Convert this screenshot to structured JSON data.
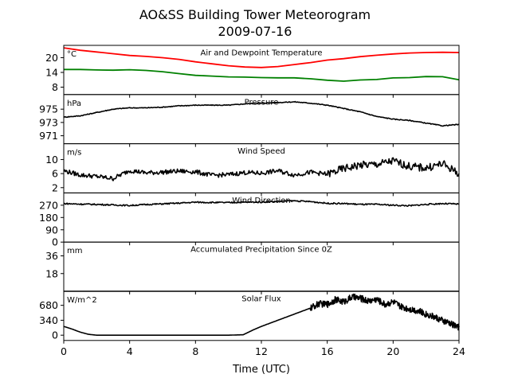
{
  "title": "AO&SS Building Tower Meteorogram",
  "subtitle": "2009-07-16",
  "chart_data": [
    {
      "type": "line",
      "annotation": "Air and Dewpoint Temperature",
      "unit": "°C",
      "ylim": [
        5,
        25
      ],
      "yticks": [
        8,
        14,
        20
      ],
      "series": [
        {
          "color": "#ff0000",
          "x": [
            0,
            1,
            2,
            3,
            4,
            5,
            6,
            7,
            8,
            9,
            10,
            11,
            12,
            13,
            14,
            15,
            16,
            17,
            18,
            19,
            20,
            21,
            22,
            23,
            24
          ],
          "y": [
            24.0,
            23.0,
            22.3,
            21.6,
            20.9,
            20.5,
            20.0,
            19.3,
            18.3,
            17.5,
            16.7,
            16.2,
            16.0,
            16.4,
            17.2,
            18.0,
            19.0,
            19.6,
            20.4,
            21.0,
            21.5,
            21.9,
            22.1,
            22.2,
            22.1
          ]
        },
        {
          "color": "#008000",
          "x": [
            0,
            1,
            2,
            3,
            4,
            5,
            6,
            7,
            8,
            9,
            10,
            11,
            12,
            13,
            14,
            15,
            16,
            17,
            18,
            19,
            20,
            21,
            22,
            23,
            24
          ],
          "y": [
            15.2,
            15.2,
            15.0,
            14.9,
            15.1,
            14.8,
            14.3,
            13.5,
            12.8,
            12.5,
            12.2,
            12.1,
            11.9,
            11.8,
            11.8,
            11.4,
            11.0,
            10.3,
            10.9,
            11.2,
            11.8,
            12.1,
            12.1,
            12.0,
            11.0
          ]
        }
      ]
    },
    {
      "type": "line",
      "annotation": "Pressure",
      "unit": "hPa",
      "ylim": [
        969.8,
        977.2
      ],
      "yticks": [
        971,
        973,
        975
      ],
      "series": [
        {
          "color": "#000000",
          "x": [
            0,
            1,
            2,
            3,
            4,
            5,
            6,
            7,
            8,
            9,
            10,
            11,
            12,
            13,
            14,
            15,
            16,
            17,
            18,
            19,
            20,
            21,
            22,
            23,
            24
          ],
          "y": [
            973.8,
            974.0,
            974.5,
            975.0,
            975.2,
            975.2,
            975.3,
            975.5,
            975.6,
            975.6,
            975.6,
            975.8,
            975.9,
            976.0,
            976.1,
            975.9,
            975.6,
            975.1,
            974.6,
            973.9,
            973.5,
            973.3,
            972.9,
            972.5,
            972.7
          ]
        }
      ]
    },
    {
      "type": "line",
      "annotation": "Wind Speed",
      "unit": "m/s",
      "ylim": [
        0.5,
        14.5
      ],
      "yticks": [
        2,
        6,
        10
      ],
      "series": [
        {
          "color": "#000000",
          "x": [
            0,
            1,
            2,
            3,
            4,
            5,
            6,
            7,
            8,
            9,
            10,
            11,
            12,
            13,
            14,
            15,
            16,
            17,
            18,
            19,
            20,
            21,
            22,
            23,
            24
          ],
          "y": [
            6.8,
            5.6,
            5.2,
            4.6,
            6.9,
            6.2,
            6.4,
            6.7,
            6.5,
            5.5,
            5.7,
            6.3,
            6.1,
            6.8,
            5.6,
            6.4,
            5.8,
            7.4,
            8.4,
            8.6,
            9.6,
            8.0,
            7.6,
            8.8,
            6.0
          ]
        }
      ]
    },
    {
      "type": "line",
      "annotation": "Wind Direction",
      "unit": "",
      "ylim": [
        0,
        360
      ],
      "yticks": [
        0,
        90,
        180,
        270
      ],
      "series": [
        {
          "color": "#000000",
          "x": [
            0,
            1,
            2,
            3,
            4,
            5,
            6,
            7,
            8,
            9,
            10,
            11,
            12,
            13,
            14,
            15,
            16,
            17,
            18,
            19,
            20,
            21,
            22,
            23,
            24
          ],
          "y": [
            282,
            278,
            276,
            272,
            268,
            275,
            280,
            285,
            292,
            290,
            289,
            292,
            293,
            298,
            302,
            296,
            284,
            282,
            276,
            276,
            270,
            266,
            276,
            282,
            278
          ]
        }
      ]
    },
    {
      "type": "line",
      "annotation": "Accumulated Precipitation Since 0Z",
      "unit": "mm",
      "ylim": [
        0,
        50
      ],
      "yticks": [
        18,
        36
      ],
      "series": [
        {
          "color": "#000000",
          "x": [
            0,
            24
          ],
          "y": [
            0,
            0
          ]
        }
      ]
    },
    {
      "type": "line",
      "annotation": "Solar Flux",
      "unit": "W/m^2",
      "ylim": [
        -120,
        1000
      ],
      "yticks": [
        0,
        340,
        680
      ],
      "xlabel": "Time (UTC)",
      "xticks": [
        0,
        4,
        8,
        12,
        16,
        20,
        24
      ],
      "xlim": [
        0,
        24
      ],
      "series": [
        {
          "color": "#000000",
          "x": [
            0,
            0.5,
            1,
            1.5,
            2,
            4,
            6,
            8,
            10,
            10.9,
            11.5,
            12,
            13,
            14,
            15,
            15.5,
            16,
            16.5,
            17,
            17.5,
            18,
            18.5,
            19,
            19.5,
            20,
            20.5,
            21,
            21.5,
            22,
            22.5,
            23,
            23.5,
            24
          ],
          "y": [
            200,
            140,
            70,
            20,
            0,
            0,
            0,
            0,
            0,
            10,
            120,
            200,
            340,
            480,
            620,
            720,
            700,
            810,
            760,
            870,
            840,
            780,
            820,
            700,
            760,
            640,
            600,
            560,
            480,
            420,
            330,
            260,
            180
          ]
        }
      ]
    }
  ]
}
